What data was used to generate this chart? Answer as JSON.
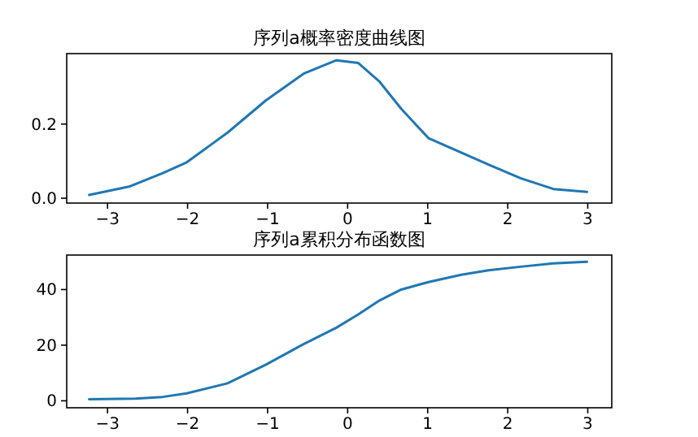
{
  "chart_data": [
    {
      "type": "line",
      "title": "序列a概率密度曲线图",
      "color": "#1f77b4",
      "x": [
        -3.23,
        -2.72,
        -2.31,
        -2.01,
        -1.5,
        -1.02,
        -0.55,
        -0.14,
        0.13,
        0.4,
        0.67,
        1.01,
        1.42,
        1.76,
        2.16,
        2.57,
        2.99
      ],
      "values": [
        0.009,
        0.032,
        0.068,
        0.097,
        0.177,
        0.264,
        0.336,
        0.372,
        0.365,
        0.314,
        0.241,
        0.162,
        0.123,
        0.091,
        0.054,
        0.025,
        0.017
      ],
      "xlim": [
        -3.51,
        3.3
      ],
      "ylim": [
        -0.013,
        0.39
      ],
      "xticks": [
        -3,
        -2,
        -1,
        0,
        1,
        2,
        3
      ],
      "yticks": [
        {
          "value": 0,
          "label": "0.0"
        },
        {
          "value": 0.2,
          "label": "0.2"
        }
      ]
    },
    {
      "type": "line",
      "title": "序列a累积分布函数图",
      "color": "#1f77b4",
      "x": [
        -3.23,
        -2.65,
        -2.31,
        -2.01,
        -1.5,
        -1.02,
        -0.55,
        -0.14,
        0.13,
        0.4,
        0.67,
        1.01,
        1.42,
        1.76,
        2.16,
        2.57,
        2.99
      ],
      "values": [
        0.6,
        0.8,
        1.4,
        2.7,
        6.3,
        13,
        20.4,
        26.3,
        31,
        36.1,
        40,
        42.7,
        45.3,
        46.9,
        48.2,
        49.4,
        50
      ],
      "xlim": [
        -3.51,
        3.3
      ],
      "ylim": [
        -2.5,
        52.4
      ],
      "xticks": [
        -3,
        -2,
        -1,
        0,
        1,
        2,
        3
      ],
      "yticks": [
        0,
        20,
        40
      ]
    }
  ]
}
